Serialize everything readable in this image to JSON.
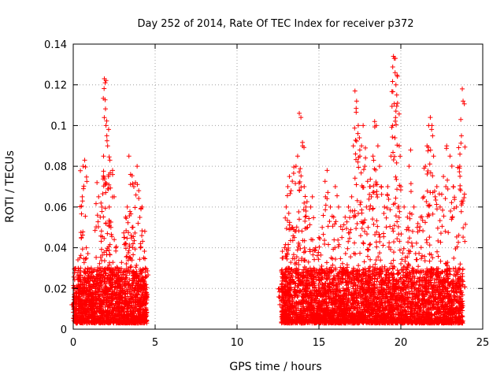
{
  "chart_data": {
    "type": "scatter",
    "title": "Day 252 of 2014, Rate Of TEC Index for receiver p372",
    "xlabel": "GPS time / hours",
    "ylabel": "ROTI / TECUs",
    "xlim": [
      0,
      25
    ],
    "ylim": [
      0,
      0.14
    ],
    "x_ticks": [
      0,
      5,
      10,
      15,
      20,
      25
    ],
    "x_tick_labels": [
      "0",
      "5",
      "10",
      "15",
      "20",
      "25"
    ],
    "y_ticks": [
      0,
      0.02,
      0.04,
      0.06,
      0.08,
      0.1,
      0.12,
      0.14
    ],
    "y_tick_labels": [
      "0",
      "0.02",
      "0.04",
      "0.06",
      "0.08",
      "0.1",
      "0.12",
      "0.14"
    ],
    "grid": true,
    "marker": "+",
    "color": "#ff0000",
    "series": [
      {
        "name": "ROTI",
        "points": [
          [
            0.0,
            0.012
          ],
          [
            0.2,
            0.018
          ],
          [
            0.3,
            0.022
          ],
          [
            0.4,
            0.035
          ],
          [
            0.5,
            0.045
          ],
          [
            0.55,
            0.065
          ],
          [
            0.6,
            0.08
          ],
          [
            0.7,
            0.083
          ],
          [
            0.8,
            0.04
          ],
          [
            0.9,
            0.025
          ],
          [
            1.0,
            0.02
          ],
          [
            1.1,
            0.03
          ],
          [
            1.2,
            0.018
          ],
          [
            1.35,
            0.025
          ],
          [
            1.45,
            0.072
          ],
          [
            1.55,
            0.065
          ],
          [
            1.65,
            0.055
          ],
          [
            1.75,
            0.06
          ],
          [
            1.85,
            0.085
          ],
          [
            1.9,
            0.123
          ],
          [
            1.95,
            0.121
          ],
          [
            2.0,
            0.1
          ],
          [
            2.05,
            0.095
          ],
          [
            2.1,
            0.09
          ],
          [
            2.15,
            0.075
          ],
          [
            2.2,
            0.06
          ],
          [
            2.3,
            0.05
          ],
          [
            2.4,
            0.078
          ],
          [
            2.5,
            0.065
          ],
          [
            2.6,
            0.04
          ],
          [
            2.7,
            0.03
          ],
          [
            2.8,
            0.025
          ],
          [
            3.0,
            0.02
          ],
          [
            3.1,
            0.045
          ],
          [
            3.2,
            0.055
          ],
          [
            3.3,
            0.06
          ],
          [
            3.4,
            0.085
          ],
          [
            3.5,
            0.076
          ],
          [
            3.6,
            0.05
          ],
          [
            3.7,
            0.07
          ],
          [
            3.8,
            0.072
          ],
          [
            3.9,
            0.08
          ],
          [
            4.0,
            0.068
          ],
          [
            4.1,
            0.04
          ],
          [
            4.2,
            0.06
          ],
          [
            4.3,
            0.035
          ],
          [
            4.4,
            0.03
          ],
          [
            12.7,
            0.02
          ],
          [
            12.8,
            0.035
          ],
          [
            12.9,
            0.04
          ],
          [
            13.0,
            0.06
          ],
          [
            13.1,
            0.07
          ],
          [
            13.2,
            0.075
          ],
          [
            13.3,
            0.068
          ],
          [
            13.4,
            0.05
          ],
          [
            13.5,
            0.045
          ],
          [
            13.6,
            0.08
          ],
          [
            13.7,
            0.085
          ],
          [
            13.8,
            0.106
          ],
          [
            13.9,
            0.104
          ],
          [
            14.0,
            0.09
          ],
          [
            14.1,
            0.07
          ],
          [
            14.2,
            0.06
          ],
          [
            14.3,
            0.05
          ],
          [
            14.5,
            0.06
          ],
          [
            14.6,
            0.065
          ],
          [
            14.8,
            0.04
          ],
          [
            15.0,
            0.045
          ],
          [
            15.2,
            0.05
          ],
          [
            15.4,
            0.065
          ],
          [
            15.5,
            0.078
          ],
          [
            15.7,
            0.06
          ],
          [
            15.9,
            0.055
          ],
          [
            16.0,
            0.07
          ],
          [
            16.2,
            0.06
          ],
          [
            16.4,
            0.045
          ],
          [
            16.6,
            0.055
          ],
          [
            16.8,
            0.06
          ],
          [
            17.0,
            0.065
          ],
          [
            17.1,
            0.09
          ],
          [
            17.2,
            0.117
          ],
          [
            17.3,
            0.112
          ],
          [
            17.4,
            0.1
          ],
          [
            17.5,
            0.085
          ],
          [
            17.6,
            0.09
          ],
          [
            17.7,
            0.1
          ],
          [
            17.8,
            0.08
          ],
          [
            17.9,
            0.06
          ],
          [
            18.0,
            0.05
          ],
          [
            18.1,
            0.07
          ],
          [
            18.2,
            0.065
          ],
          [
            18.3,
            0.085
          ],
          [
            18.4,
            0.102
          ],
          [
            18.5,
            0.1
          ],
          [
            18.6,
            0.09
          ],
          [
            18.7,
            0.08
          ],
          [
            18.8,
            0.07
          ],
          [
            19.0,
            0.06
          ],
          [
            19.2,
            0.07
          ],
          [
            19.4,
            0.085
          ],
          [
            19.5,
            0.1
          ],
          [
            19.55,
            0.134
          ],
          [
            19.6,
            0.133
          ],
          [
            19.65,
            0.126
          ],
          [
            19.7,
            0.12
          ],
          [
            19.75,
            0.115
          ],
          [
            19.8,
            0.111
          ],
          [
            19.9,
            0.09
          ],
          [
            20.0,
            0.07
          ],
          [
            20.2,
            0.06
          ],
          [
            20.4,
            0.055
          ],
          [
            20.5,
            0.08
          ],
          [
            20.6,
            0.088
          ],
          [
            20.8,
            0.06
          ],
          [
            21.0,
            0.05
          ],
          [
            21.2,
            0.055
          ],
          [
            21.4,
            0.065
          ],
          [
            21.5,
            0.08
          ],
          [
            21.6,
            0.09
          ],
          [
            21.7,
            0.1
          ],
          [
            21.8,
            0.104
          ],
          [
            21.9,
            0.1
          ],
          [
            22.0,
            0.085
          ],
          [
            22.2,
            0.07
          ],
          [
            22.4,
            0.06
          ],
          [
            22.6,
            0.075
          ],
          [
            22.8,
            0.09
          ],
          [
            23.0,
            0.085
          ],
          [
            23.2,
            0.07
          ],
          [
            23.4,
            0.06
          ],
          [
            23.6,
            0.08
          ],
          [
            23.7,
            0.095
          ],
          [
            23.75,
            0.118
          ],
          [
            23.8,
            0.112
          ]
        ]
      }
    ],
    "dense_band": {
      "description": "dense cloud of low ROTI values",
      "intervals": [
        [
          0.0,
          4.5
        ],
        [
          12.7,
          23.8
        ]
      ],
      "y_range": [
        0.003,
        0.03
      ]
    }
  }
}
